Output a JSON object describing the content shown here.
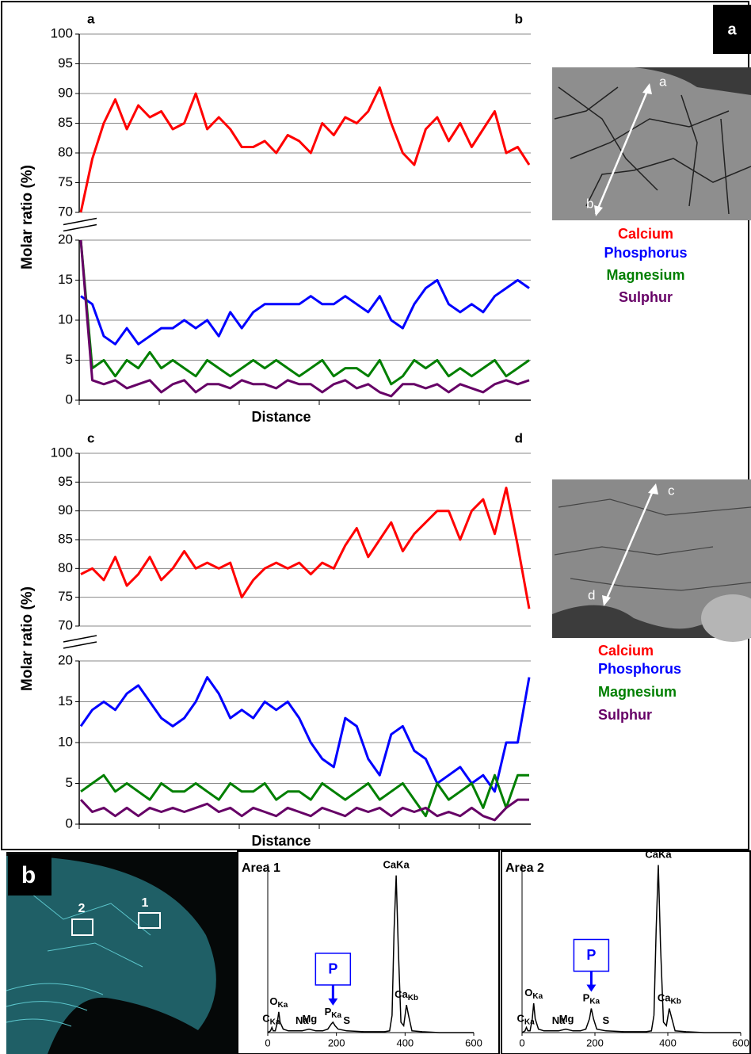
{
  "chart_data": [
    {
      "type": "line",
      "start_label": "a",
      "end_label": "b",
      "ylabel": "Molar ratio (%)",
      "xlabel": "Distance",
      "ylim": [
        0,
        100
      ],
      "axis_break": [
        20,
        70
      ],
      "yticks": [
        0,
        5,
        10,
        15,
        20,
        70,
        75,
        80,
        85,
        90,
        95,
        100
      ],
      "grid": true,
      "image_labels": [
        "a",
        "b"
      ],
      "series": [
        {
          "name": "Calcium",
          "color": "#ff0000",
          "values": [
            70,
            79,
            85,
            89,
            84,
            88,
            86,
            87,
            84,
            85,
            90,
            84,
            86,
            84,
            81,
            81,
            82,
            80,
            83,
            82,
            80,
            85,
            83,
            86,
            85,
            87,
            91,
            85,
            80,
            78,
            84,
            86,
            82,
            85,
            81,
            84,
            87,
            80,
            81,
            78
          ]
        },
        {
          "name": "Phosphorus",
          "color": "#0000ff",
          "values": [
            13,
            12,
            8,
            7,
            9,
            7,
            8,
            9,
            9,
            10,
            9,
            10,
            8,
            11,
            9,
            11,
            12,
            12,
            12,
            12,
            13,
            12,
            12,
            13,
            12,
            11,
            13,
            10,
            9,
            12,
            14,
            15,
            12,
            11,
            12,
            11,
            13,
            14,
            15,
            14
          ]
        },
        {
          "name": "Magnesium",
          "color": "#007f00",
          "values": [
            20,
            4,
            5,
            3,
            5,
            4,
            6,
            4,
            5,
            4,
            3,
            5,
            4,
            3,
            4,
            5,
            4,
            5,
            4,
            3,
            4,
            5,
            3,
            4,
            4,
            3,
            5,
            2,
            3,
            5,
            4,
            5,
            3,
            4,
            3,
            4,
            5,
            3,
            4,
            5
          ]
        },
        {
          "name": "Sulphur",
          "color": "#660066",
          "values": [
            20,
            2.5,
            2,
            2.5,
            1.5,
            2,
            2.5,
            1,
            2,
            2.5,
            1,
            2,
            2,
            1.5,
            2.5,
            2,
            2,
            1.5,
            2.5,
            2,
            2,
            1,
            2,
            2.5,
            1.5,
            2,
            1,
            0.5,
            2,
            2,
            1.5,
            2,
            1,
            2,
            1.5,
            1,
            2,
            2.5,
            2,
            2.5
          ]
        }
      ]
    },
    {
      "type": "line",
      "start_label": "c",
      "end_label": "d",
      "ylabel": "Molar ratio (%)",
      "xlabel": "Distance",
      "ylim": [
        0,
        100
      ],
      "axis_break": [
        20,
        70
      ],
      "yticks": [
        0,
        5,
        10,
        15,
        20,
        70,
        75,
        80,
        85,
        90,
        95,
        100
      ],
      "grid": true,
      "image_labels": [
        "c",
        "d"
      ],
      "series": [
        {
          "name": "Calcium",
          "color": "#ff0000",
          "values": [
            79,
            80,
            78,
            82,
            77,
            79,
            82,
            78,
            80,
            83,
            80,
            81,
            80,
            81,
            75,
            78,
            80,
            81,
            80,
            81,
            79,
            81,
            80,
            84,
            87,
            82,
            85,
            88,
            83,
            86,
            88,
            90,
            90,
            85,
            90,
            92,
            86,
            94,
            84,
            73
          ]
        },
        {
          "name": "Phosphorus",
          "color": "#0000ff",
          "values": [
            12,
            14,
            15,
            14,
            16,
            17,
            15,
            13,
            12,
            13,
            15,
            18,
            16,
            13,
            14,
            13,
            15,
            14,
            15,
            13,
            10,
            8,
            7,
            13,
            12,
            8,
            6,
            11,
            12,
            9,
            8,
            5,
            6,
            7,
            5,
            6,
            4,
            10,
            10,
            18
          ]
        },
        {
          "name": "Magnesium",
          "color": "#007f00",
          "values": [
            4,
            5,
            6,
            4,
            5,
            4,
            3,
            5,
            4,
            4,
            5,
            4,
            3,
            5,
            4,
            4,
            5,
            3,
            4,
            4,
            3,
            5,
            4,
            3,
            4,
            5,
            3,
            4,
            5,
            3,
            1,
            5,
            3,
            4,
            5,
            2,
            6,
            2,
            6,
            6
          ]
        },
        {
          "name": "Sulphur",
          "color": "#660066",
          "values": [
            3,
            1.5,
            2,
            1,
            2,
            1,
            2,
            1.5,
            2,
            1.5,
            2,
            2.5,
            1.5,
            2,
            1,
            2,
            1.5,
            1,
            2,
            1.5,
            1,
            2,
            1.5,
            1,
            2,
            1.5,
            2,
            1,
            2,
            1.5,
            2,
            1,
            1.5,
            1,
            2,
            1,
            0.5,
            2,
            3,
            3
          ]
        }
      ]
    },
    {
      "type": "spectrum",
      "title": "Area 1",
      "callout": "P",
      "color": "#000000",
      "xlim": [
        0,
        600
      ],
      "xticks": [
        0,
        200,
        400,
        600
      ],
      "ylim": [
        0,
        100
      ],
      "x": [
        0,
        8,
        12,
        16,
        22,
        28,
        32,
        36,
        45,
        60,
        80,
        100,
        120,
        140,
        160,
        175,
        185,
        190,
        196,
        205,
        230,
        280,
        340,
        355,
        362,
        368,
        374,
        380,
        388,
        396,
        404,
        410,
        420,
        450,
        500,
        600
      ],
      "values": [
        0,
        1,
        3,
        1,
        1,
        6,
        12,
        6,
        2,
        1,
        1,
        1,
        2,
        1,
        1,
        2,
        5,
        6,
        4,
        2,
        1,
        0.5,
        0.5,
        1,
        10,
        60,
        91,
        50,
        6,
        4,
        16,
        10,
        1,
        0.5,
        0,
        0
      ],
      "annotations": [
        {
          "text": "C",
          "sub": "Ka",
          "x": 10
        },
        {
          "text": "O",
          "sub": "Ka",
          "x": 32
        },
        {
          "text": "Na",
          "x": 100
        },
        {
          "text": "Mg",
          "x": 122
        },
        {
          "text": "P",
          "sub": "Ka",
          "x": 190
        },
        {
          "text": "S",
          "x": 230
        },
        {
          "text": "CaKa",
          "x": 374
        },
        {
          "text": "Ca",
          "sub": "Kb",
          "x": 404
        }
      ]
    },
    {
      "type": "spectrum",
      "title": "Area 2",
      "callout": "P",
      "color": "#000000",
      "xlim": [
        0,
        600
      ],
      "xticks": [
        0,
        200,
        400,
        600
      ],
      "ylim": [
        0,
        100
      ],
      "x": [
        0,
        8,
        12,
        16,
        22,
        28,
        32,
        36,
        45,
        60,
        80,
        100,
        120,
        140,
        160,
        175,
        185,
        190,
        196,
        205,
        230,
        280,
        340,
        355,
        362,
        368,
        374,
        380,
        388,
        396,
        404,
        410,
        420,
        450,
        500,
        600
      ],
      "values": [
        0,
        1,
        3,
        1,
        1,
        8,
        17,
        8,
        2,
        1,
        1,
        1,
        2,
        1,
        1,
        2,
        8,
        14,
        8,
        2,
        1,
        0.5,
        0.5,
        1,
        10,
        60,
        97,
        50,
        6,
        4,
        14,
        9,
        1,
        0.5,
        0,
        0
      ],
      "annotations": [
        {
          "text": "C",
          "sub": "Ka",
          "x": 10
        },
        {
          "text": "O",
          "sub": "Ka",
          "x": 32
        },
        {
          "text": "Na",
          "x": 100
        },
        {
          "text": "Mg",
          "x": 122
        },
        {
          "text": "P",
          "sub": "Ka",
          "x": 190
        },
        {
          "text": "S",
          "x": 230
        },
        {
          "text": "CaKa",
          "x": 374
        },
        {
          "text": "Ca",
          "sub": "Kb",
          "x": 404
        }
      ]
    }
  ],
  "panel_labels": [
    "a",
    "b"
  ],
  "micrograph_labels": [
    "1",
    "2"
  ]
}
